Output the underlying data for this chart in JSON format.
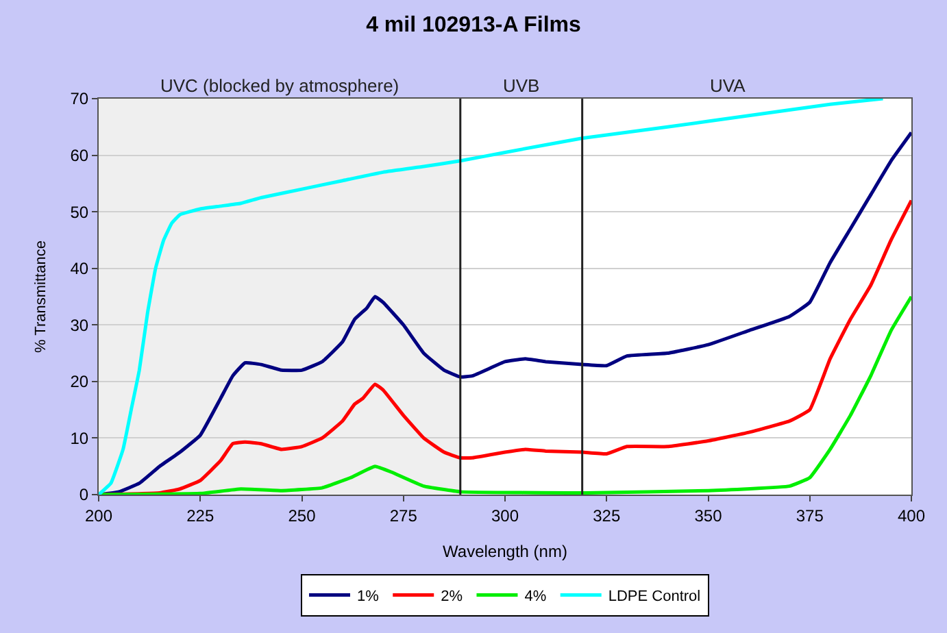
{
  "chart_data": {
    "type": "line",
    "title": "4 mil 102913-A Films",
    "xlabel": "Wavelength (nm)",
    "ylabel": "% Transmittance",
    "xlim": [
      200,
      400
    ],
    "xticks": [
      200,
      225,
      250,
      275,
      300,
      325,
      350,
      375,
      400
    ],
    "ylim": [
      0,
      70
    ],
    "yticks": [
      0,
      10,
      20,
      30,
      40,
      50,
      60,
      70
    ],
    "grid": "y",
    "legend": "bottom",
    "marker": "none",
    "line_style": "solid",
    "bands": [
      {
        "axis": "x",
        "from": 200,
        "to": 289,
        "label": "UVC (blocked by atmosphere)",
        "color": "#efefef"
      }
    ],
    "annotations": [
      "UVB",
      "UVA"
    ],
    "ref_lines": [
      {
        "axis": "x",
        "value": 289,
        "color": "#222222"
      },
      {
        "axis": "x",
        "value": 319,
        "color": "#222222"
      }
    ],
    "series": [
      {
        "name": "1%",
        "color": "#000080",
        "x": [
          200,
          205,
          210,
          215,
          220,
          225,
          230,
          233,
          236,
          240,
          245,
          250,
          255,
          260,
          263,
          266,
          268,
          270,
          275,
          280,
          285,
          289,
          292,
          300,
          305,
          310,
          319,
          325,
          330,
          340,
          350,
          360,
          370,
          375,
          380,
          385,
          390,
          395,
          400
        ],
        "values": [
          0,
          0.5,
          2,
          5,
          7.5,
          10.5,
          17,
          21,
          23.3,
          23,
          22,
          22,
          23.5,
          27,
          31,
          33,
          35,
          34,
          30,
          25,
          22,
          20.8,
          21,
          23.5,
          24,
          23.5,
          23,
          22.8,
          24.5,
          25,
          26.5,
          29,
          31.5,
          34,
          41,
          47,
          53,
          59,
          64
        ]
      },
      {
        "name": "2%",
        "color": "#ff0000",
        "x": [
          200,
          215,
          220,
          225,
          230,
          233,
          236,
          240,
          245,
          250,
          255,
          260,
          263,
          265,
          268,
          270,
          275,
          280,
          285,
          289,
          292,
          300,
          305,
          310,
          319,
          325,
          330,
          340,
          350,
          360,
          370,
          375,
          380,
          385,
          390,
          395,
          400
        ],
        "values": [
          0,
          0.3,
          1,
          2.5,
          6,
          9,
          9.3,
          9,
          8,
          8.5,
          10,
          13,
          16,
          17,
          19.5,
          18.5,
          14,
          10,
          7.5,
          6.5,
          6.5,
          7.5,
          8,
          7.7,
          7.5,
          7.2,
          8.5,
          8.5,
          9.5,
          11,
          13,
          15,
          24,
          31,
          37,
          45,
          52
        ]
      },
      {
        "name": "4%",
        "color": "#00ee00",
        "x": [
          200,
          225,
          235,
          245,
          255,
          262,
          268,
          272,
          280,
          289,
          320,
          350,
          370,
          375,
          380,
          385,
          390,
          395,
          400
        ],
        "values": [
          0,
          0.2,
          1,
          0.7,
          1.2,
          3,
          5,
          4,
          1.5,
          0.5,
          0.3,
          0.7,
          1.5,
          3,
          8,
          14,
          21,
          29,
          35
        ]
      },
      {
        "name": "LDPE Control",
        "color": "#00ffff",
        "x": [
          200,
          203,
          206,
          208,
          210,
          212,
          214,
          216,
          218,
          220,
          225,
          230,
          235,
          240,
          250,
          260,
          270,
          280,
          289,
          300,
          319,
          340,
          360,
          380,
          393
        ],
        "values": [
          0,
          2,
          8,
          15,
          22,
          32,
          40,
          45,
          48,
          49.5,
          50.5,
          51,
          51.5,
          52.5,
          54,
          55.5,
          57,
          58,
          59,
          60.5,
          63,
          65,
          67,
          69,
          70
        ]
      }
    ]
  }
}
